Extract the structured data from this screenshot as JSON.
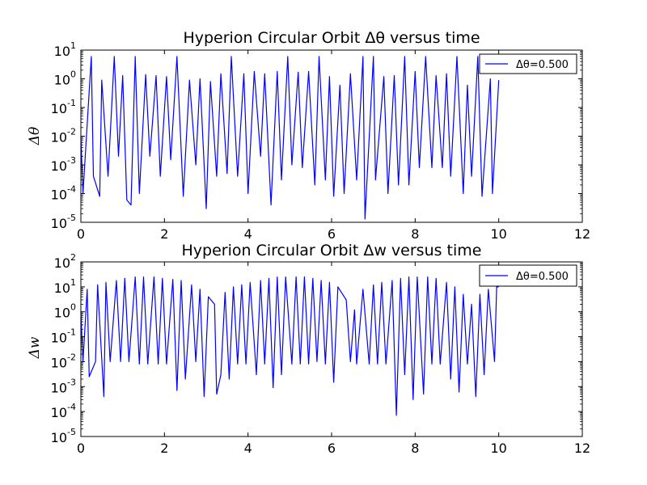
{
  "chart_data": [
    {
      "type": "line",
      "title": "Hyperion Circular Orbit Δθ versus time",
      "xlabel": "",
      "ylabel": "Δθ",
      "xlim": [
        0,
        12
      ],
      "ylim": [
        1e-05,
        10
      ],
      "yscale": "log",
      "xticks": [
        "0",
        "2",
        "4",
        "6",
        "8",
        "10",
        "12"
      ],
      "yticks": [
        {
          "base": "10",
          "exp": "-5"
        },
        {
          "base": "10",
          "exp": "-4"
        },
        {
          "base": "10",
          "exp": "-3"
        },
        {
          "base": "10",
          "exp": "-2"
        },
        {
          "base": "10",
          "exp": "-1"
        },
        {
          "base": "10",
          "exp": "0"
        },
        {
          "base": "10",
          "exp": "1"
        }
      ],
      "legend": {
        "position": "top-right",
        "entries": [
          "Δθ=0.500"
        ]
      },
      "grid": false,
      "series": [
        {
          "name": "Δθ=0.500",
          "color": "#0000ff",
          "x_start": 0.0,
          "x_end": 10.0,
          "peaks": [
            0.25,
            0.5,
            0.8,
            1.0,
            1.3,
            1.55,
            1.8,
            2.05,
            2.3,
            2.6,
            2.85,
            3.1,
            3.35,
            3.6,
            3.9,
            4.15,
            4.4,
            4.7,
            4.95,
            5.2,
            5.45,
            5.7,
            5.95,
            6.2,
            6.45,
            6.75,
            7.0,
            7.25,
            7.5,
            7.75,
            8.0,
            8.25,
            8.5,
            8.75,
            9.0,
            9.25,
            9.5,
            9.8
          ],
          "peak_values": [
            6,
            0.9,
            6,
            1.3,
            6,
            1.4,
            1.3,
            1.2,
            6,
            0.9,
            1.0,
            0.8,
            1.5,
            6,
            1.5,
            1.8,
            1.5,
            1.8,
            6,
            1.7,
            1.8,
            6,
            1.2,
            0.6,
            1.5,
            6,
            6,
            1.2,
            1.3,
            6,
            1.8,
            6,
            1.3,
            1.5,
            6,
            0.6,
            6,
            1.0
          ],
          "dips": [
            0.05,
            0.3,
            0.45,
            0.65,
            0.9,
            1.1,
            1.2,
            1.4,
            1.65,
            1.9,
            2.15,
            2.45,
            2.75,
            3.0,
            3.25,
            3.5,
            3.75,
            4.0,
            4.3,
            4.55,
            4.8,
            5.05,
            5.3,
            5.6,
            5.85,
            6.05,
            6.3,
            6.6,
            6.8,
            7.05,
            7.35,
            7.6,
            7.85,
            8.1,
            8.4,
            8.65,
            8.85,
            9.15,
            9.35,
            9.6,
            9.85
          ],
          "dip_values": [
            0.0001,
            0.0004,
            8e-05,
            0.0004,
            0.002,
            6e-05,
            4e-05,
            0.0001,
            0.002,
            0.0004,
            0.0015,
            8e-05,
            0.001,
            3e-05,
            0.0004,
            0.0005,
            0.0004,
            0.0001,
            0.002,
            4e-05,
            0.0003,
            0.001,
            0.0008,
            0.0002,
            0.0003,
            8e-05,
            0.0001,
            0.0003,
            1.3e-05,
            0.0003,
            0.0001,
            0.0002,
            0.0002,
            0.0008,
            0.0008,
            0.0008,
            0.0004,
            0.0001,
            0.0004,
            8e-05,
            0.0001
          ],
          "end_value": 0.9
        }
      ]
    },
    {
      "type": "line",
      "title": "Hyperion Circular Orbit Δw versus time",
      "xlabel": "",
      "ylabel": "Δw",
      "xlim": [
        0,
        12
      ],
      "ylim": [
        1e-05,
        100
      ],
      "yscale": "log",
      "xticks": [
        "0",
        "2",
        "4",
        "6",
        "8",
        "10",
        "12"
      ],
      "yticks": [
        {
          "base": "10",
          "exp": "-5"
        },
        {
          "base": "10",
          "exp": "-4"
        },
        {
          "base": "10",
          "exp": "-3"
        },
        {
          "base": "10",
          "exp": "-2"
        },
        {
          "base": "10",
          "exp": "-1"
        },
        {
          "base": "10",
          "exp": "0"
        },
        {
          "base": "10",
          "exp": "1"
        },
        {
          "base": "10",
          "exp": "2"
        }
      ],
      "legend": {
        "position": "top-right",
        "entries": [
          "Δθ=0.500"
        ]
      },
      "grid": false,
      "series": [
        {
          "name": "Δθ=0.500",
          "color": "#0000ff",
          "x_start": 0.0,
          "x_end": 10.0,
          "peaks": [
            0.15,
            0.4,
            0.6,
            0.85,
            1.05,
            1.3,
            1.5,
            1.75,
            1.95,
            2.2,
            2.4,
            2.65,
            2.85,
            3.05,
            3.2,
            3.45,
            3.65,
            3.85,
            4.05,
            4.3,
            4.5,
            4.7,
            4.9,
            5.15,
            5.35,
            5.55,
            5.75,
            5.95,
            6.15,
            6.35,
            6.55,
            6.75,
            7.0,
            7.2,
            7.45,
            7.65,
            7.85,
            8.05,
            8.3,
            8.5,
            8.75,
            8.95,
            9.15,
            9.35,
            9.55,
            9.75,
            9.95
          ],
          "peak_values": [
            8,
            12,
            15,
            18,
            22,
            25,
            25,
            25,
            22,
            20,
            18,
            12,
            8,
            4,
            2,
            6,
            10,
            12,
            15,
            18,
            22,
            25,
            25,
            25,
            25,
            22,
            18,
            15,
            10,
            3,
            1.2,
            8,
            12,
            15,
            18,
            22,
            25,
            25,
            25,
            22,
            15,
            10,
            5,
            2,
            5,
            8,
            10
          ],
          "dips": [
            0.05,
            0.2,
            0.35,
            0.55,
            0.7,
            0.95,
            1.15,
            1.4,
            1.6,
            1.85,
            2.05,
            2.3,
            2.5,
            2.75,
            2.95,
            3.25,
            3.35,
            3.55,
            3.75,
            3.95,
            4.2,
            4.4,
            4.6,
            4.8,
            5.05,
            5.25,
            5.45,
            5.65,
            5.85,
            6.05,
            6.45,
            6.6,
            6.9,
            7.1,
            7.3,
            7.55,
            7.75,
            7.95,
            8.2,
            8.4,
            8.6,
            8.85,
            9.05,
            9.25,
            9.45,
            9.65,
            9.9
          ],
          "dip_values": [
            0.01,
            0.0025,
            0.01,
            0.0004,
            0.01,
            0.01,
            0.01,
            0.008,
            0.008,
            0.008,
            0.008,
            0.0007,
            0.002,
            0.01,
            0.0004,
            0.0005,
            0.003,
            0.002,
            0.008,
            0.008,
            0.003,
            0.008,
            0.0009,
            0.003,
            0.008,
            0.008,
            0.008,
            0.01,
            0.008,
            0.0015,
            0.01,
            0.008,
            0.008,
            0.008,
            0.008,
            7e-05,
            0.003,
            0.0003,
            0.0005,
            0.008,
            0.008,
            0.002,
            0.0006,
            0.008,
            0.0004,
            0.003,
            0.01
          ],
          "end_value": 10
        }
      ]
    }
  ]
}
